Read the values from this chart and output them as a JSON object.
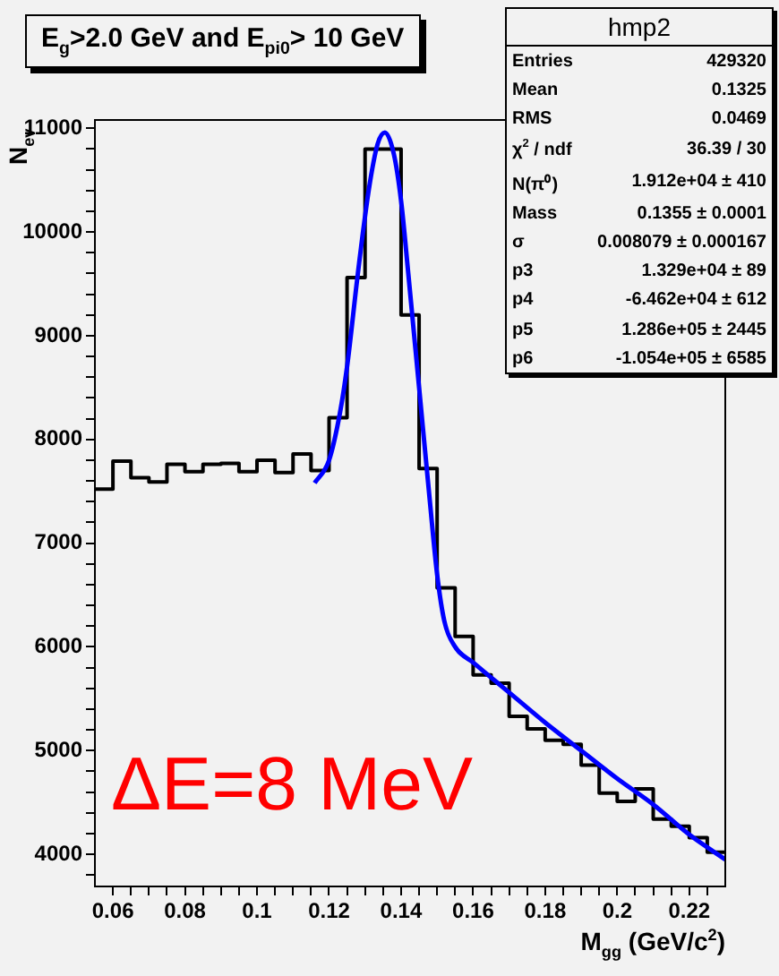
{
  "chart_data": {
    "type": "histogram",
    "title": "E$_{g}$>2.0 GeV and E$_{pi0}$> 10 GeV",
    "xlabel": "M$_{gg}$ (GeV/c$^{2}$)",
    "ylabel": "N$_{ev}$",
    "color": "#000000",
    "bins": [
      0.055,
      0.06,
      0.065,
      0.07,
      0.075,
      0.08,
      0.085,
      0.09,
      0.095,
      0.1,
      0.105,
      0.11,
      0.115,
      0.12,
      0.125,
      0.13,
      0.135,
      0.14,
      0.145,
      0.15,
      0.155,
      0.16,
      0.165,
      0.17,
      0.175,
      0.18,
      0.185,
      0.19,
      0.195,
      0.2,
      0.205,
      0.21,
      0.215,
      0.22,
      0.225,
      0.23
    ],
    "values": [
      7520,
      7790,
      7630,
      7590,
      7760,
      7690,
      7760,
      7770,
      7690,
      7800,
      7680,
      7860,
      7700,
      8210,
      9560,
      10800,
      10800,
      9200,
      7720,
      6570,
      6100,
      5730,
      5650,
      5330,
      5210,
      5100,
      5060,
      4860,
      4590,
      4510,
      4630,
      4340,
      4270,
      4160,
      4020
    ],
    "series": [
      {
        "type": "line",
        "color": "#0000ff",
        "x": [
          0.116,
          0.12,
          0.123,
          0.125,
          0.128,
          0.131,
          0.1335,
          0.1355,
          0.138,
          0.14,
          0.142,
          0.145,
          0.148,
          0.15,
          0.152,
          0.155,
          0.16,
          0.17,
          0.18,
          0.19,
          0.2,
          0.21,
          0.22,
          0.23
        ],
        "values": [
          7580,
          7800,
          8250,
          8700,
          9600,
          10400,
          10850,
          10960,
          10750,
          10300,
          9600,
          8500,
          7400,
          6700,
          6250,
          6000,
          5850,
          5560,
          5270,
          5000,
          4730,
          4480,
          4190,
          3950
        ]
      }
    ],
    "xlim": [
      0.055,
      0.23
    ],
    "ylim": [
      3690,
      11080
    ],
    "xticks": [
      0.06,
      {
        "value": 0.065,
        "label": null
      },
      {
        "value": 0.07,
        "label": null
      },
      {
        "value": 0.075,
        "label": null
      },
      0.08,
      {
        "value": 0.085,
        "label": null
      },
      {
        "value": 0.09,
        "label": null
      },
      {
        "value": 0.095,
        "label": null
      },
      {
        "value": 0.1,
        "label": "0.1"
      },
      {
        "value": 0.105,
        "label": null
      },
      {
        "value": 0.11,
        "label": null
      },
      {
        "value": 0.115,
        "label": null
      },
      0.12,
      {
        "value": 0.125,
        "label": null
      },
      {
        "value": 0.13,
        "label": null
      },
      {
        "value": 0.135,
        "label": null
      },
      0.14,
      {
        "value": 0.145,
        "label": null
      },
      {
        "value": 0.15,
        "label": null
      },
      {
        "value": 0.155,
        "label": null
      },
      0.16,
      {
        "value": 0.165,
        "label": null
      },
      {
        "value": 0.17,
        "label": null
      },
      {
        "value": 0.175,
        "label": null
      },
      0.18,
      {
        "value": 0.185,
        "label": null
      },
      {
        "value": 0.19,
        "label": null
      },
      {
        "value": 0.195,
        "label": null
      },
      {
        "value": 0.2,
        "label": "0.2"
      },
      {
        "value": 0.205,
        "label": null
      },
      {
        "value": 0.21,
        "label": null
      },
      {
        "value": 0.215,
        "label": null
      },
      0.22,
      {
        "value": 0.225,
        "label": null
      }
    ],
    "yticks": [
      {
        "value": 3800,
        "label": null
      },
      4000,
      {
        "value": 4200,
        "label": null
      },
      {
        "value": 4400,
        "label": null
      },
      {
        "value": 4600,
        "label": null
      },
      {
        "value": 4800,
        "label": null
      },
      5000,
      {
        "value": 5200,
        "label": null
      },
      {
        "value": 5400,
        "label": null
      },
      {
        "value": 5600,
        "label": null
      },
      {
        "value": 5800,
        "label": null
      },
      6000,
      {
        "value": 6200,
        "label": null
      },
      {
        "value": 6400,
        "label": null
      },
      {
        "value": 6600,
        "label": null
      },
      {
        "value": 6800,
        "label": null
      },
      7000,
      {
        "value": 7200,
        "label": null
      },
      {
        "value": 7400,
        "label": null
      },
      {
        "value": 7600,
        "label": null
      },
      {
        "value": 7800,
        "label": null
      },
      8000,
      {
        "value": 8200,
        "label": null
      },
      {
        "value": 8400,
        "label": null
      },
      {
        "value": 8600,
        "label": null
      },
      {
        "value": 8800,
        "label": null
      },
      9000,
      {
        "value": 9200,
        "label": null
      },
      {
        "value": 9400,
        "label": null
      },
      {
        "value": 9600,
        "label": null
      },
      {
        "value": 9800,
        "label": null
      },
      10000,
      {
        "value": 10200,
        "label": null
      },
      {
        "value": 10400,
        "label": null
      },
      {
        "value": 10600,
        "label": null
      },
      {
        "value": 10800,
        "label": null
      },
      11000
    ],
    "annotations": [
      "ΔE=8 MeV",
      "hmp2",
      "Entries",
      "429320",
      "Mean",
      "0.1325",
      "RMS",
      "0.0469",
      "χ$^{2}$ / ndf",
      "36.39 / 30",
      "N(π⁰)",
      "1.912e+04 ± 410",
      "Mass",
      "0.1355 ± 0.0001",
      "σ",
      "0.008079 ± 0.000167",
      "p3",
      "1.329e+04 ± 89",
      "p4",
      "-6.462e+04 ± 612",
      "p5",
      "1.286e+05 ± 2445",
      "p6",
      "-1.054e+05 ± 6585"
    ]
  }
}
